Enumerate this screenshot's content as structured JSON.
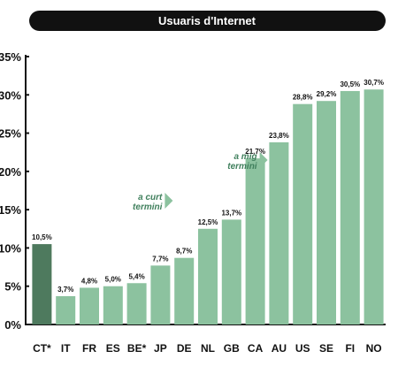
{
  "title": "Usuaris d'Internet",
  "chart_data": {
    "type": "bar",
    "title": "Usuaris d'Internet",
    "xlabel": "",
    "ylabel": "",
    "ylim": [
      0,
      35
    ],
    "y_ticks": [
      "0%",
      "5%",
      "10%",
      "15%",
      "20%",
      "25%",
      "30%",
      "35%"
    ],
    "categories": [
      "CT*",
      "IT",
      "FR",
      "ES",
      "BE*",
      "JP",
      "DE",
      "NL",
      "GB",
      "CA",
      "AU",
      "US",
      "SE",
      "FI",
      "NO"
    ],
    "values": [
      10.5,
      3.7,
      4.8,
      5.0,
      5.4,
      7.7,
      8.7,
      12.5,
      13.7,
      21.7,
      23.8,
      28.8,
      29.2,
      30.5,
      30.7
    ],
    "data_labels": [
      "10,5%",
      "3,7%",
      "4,8%",
      "5,0%",
      "5,4%",
      "7,7%",
      "8,7%",
      "12,5%",
      "13,7%",
      "21,7%",
      "23,8%",
      "28,8%",
      "29,2%",
      "30,5%",
      "30,7%"
    ],
    "highlight_color": "#4e7a5e",
    "bar_color": "#8cc29f",
    "grid": false,
    "annotations": [
      {
        "lines": [
          "a curt",
          "termini"
        ],
        "after_category": "JP"
      },
      {
        "lines": [
          "a mig",
          "termini"
        ],
        "after_category": "CA"
      }
    ]
  }
}
